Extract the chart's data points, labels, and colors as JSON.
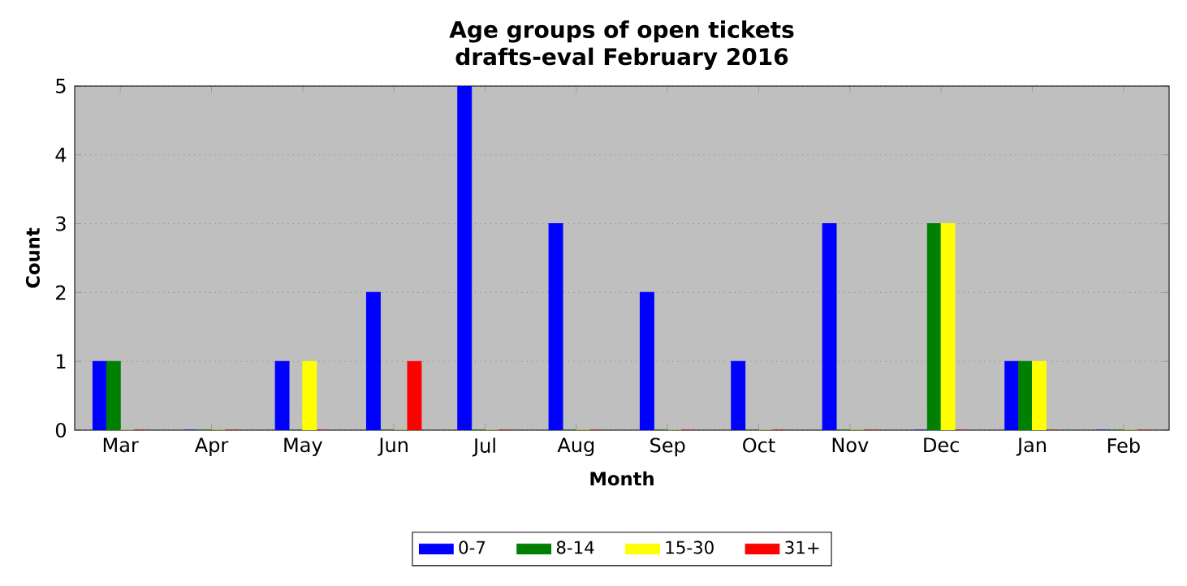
{
  "chart_data": {
    "type": "bar",
    "title": "Age groups of open tickets",
    "subtitle": "drafts-eval February 2016",
    "xlabel": "Month",
    "ylabel": "Count",
    "categories": [
      "Mar",
      "Apr",
      "May",
      "Jun",
      "Jul",
      "Aug",
      "Sep",
      "Oct",
      "Nov",
      "Dec",
      "Jan",
      "Feb"
    ],
    "series": [
      {
        "name": "0-7",
        "color": "#0000ff",
        "values": [
          1,
          0,
          1,
          2,
          5,
          3,
          2,
          1,
          3,
          0,
          1,
          0
        ]
      },
      {
        "name": "8-14",
        "color": "#008000",
        "values": [
          1,
          0,
          0,
          0,
          0,
          0,
          0,
          0,
          0,
          3,
          1,
          0
        ]
      },
      {
        "name": "15-30",
        "color": "#ffff00",
        "values": [
          0,
          0,
          1,
          0,
          0,
          0,
          0,
          0,
          0,
          3,
          1,
          0
        ]
      },
      {
        "name": "31+",
        "color": "#ff0000",
        "values": [
          0,
          0,
          0,
          1,
          0,
          0,
          0,
          0,
          0,
          0,
          0,
          0
        ]
      }
    ],
    "ylim": [
      0,
      5
    ],
    "yticks": [
      0,
      1,
      2,
      3,
      4,
      5
    ],
    "grid": "y",
    "legend": "bottom"
  }
}
